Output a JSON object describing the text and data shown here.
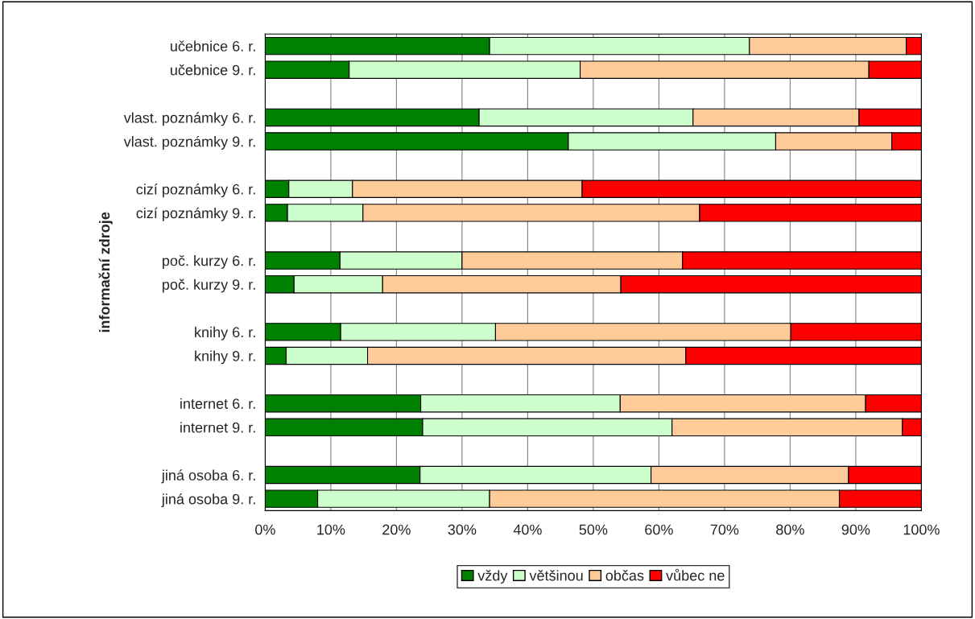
{
  "chart_data": {
    "type": "bar",
    "orientation": "horizontal",
    "stacked": true,
    "ylabel": "informační zdroje",
    "categories": [
      "učebnice 6. r.",
      "učebnice 9. r.",
      null,
      "vlast. poznámky 6. r.",
      "vlast. poznámky 9. r.",
      null,
      "cizí poznámky 6. r.",
      "cizí poznámky 9. r.",
      null,
      "poč. kurzy 6. r.",
      "poč. kurzy 9. r.",
      null,
      "knihy 6. r.",
      "knihy 9. r.",
      null,
      "internet 6. r.",
      "internet 9. r.",
      null,
      "jiná osoba 6. r.",
      "jiná osoba 9. r."
    ],
    "series": [
      {
        "name": "vždy",
        "color": "#008000",
        "values": [
          34.2,
          12.8,
          null,
          32.6,
          46.2,
          null,
          3.6,
          3.4,
          null,
          11.4,
          4.4,
          null,
          11.5,
          3.2,
          null,
          23.7,
          24.0,
          null,
          23.6,
          8.0
        ]
      },
      {
        "name": "většinou",
        "color": "#ccffcc",
        "values": [
          39.6,
          35.2,
          null,
          32.6,
          31.6,
          null,
          9.7,
          11.5,
          null,
          18.6,
          13.5,
          null,
          23.6,
          12.4,
          null,
          30.4,
          38.0,
          null,
          35.2,
          26.2
        ]
      },
      {
        "name": "občas",
        "color": "#ffcc99",
        "values": [
          23.9,
          44.0,
          null,
          25.3,
          17.7,
          null,
          35.0,
          51.3,
          null,
          33.6,
          36.3,
          null,
          45.0,
          48.5,
          null,
          37.4,
          35.1,
          null,
          30.1,
          53.3
        ]
      },
      {
        "name": "vůbec ne",
        "color": "#ff0000",
        "values": [
          2.3,
          8.0,
          null,
          9.5,
          4.5,
          null,
          51.7,
          33.8,
          null,
          36.4,
          45.8,
          null,
          19.9,
          35.9,
          null,
          8.5,
          2.9,
          null,
          11.1,
          12.5
        ]
      }
    ],
    "xlim": [
      0,
      100
    ],
    "xticks": [
      {
        "value": 0,
        "label": "0%"
      },
      {
        "value": 10,
        "label": "10%"
      },
      {
        "value": 20,
        "label": "20%"
      },
      {
        "value": 30,
        "label": "30%"
      },
      {
        "value": 40,
        "label": "40%"
      },
      {
        "value": 50,
        "label": "50%"
      },
      {
        "value": 60,
        "label": "60%"
      },
      {
        "value": 70,
        "label": "70%"
      },
      {
        "value": 80,
        "label": "80%"
      },
      {
        "value": 90,
        "label": "90%"
      },
      {
        "value": 100,
        "label": "100%"
      }
    ],
    "grid": "x",
    "legend": "bottom"
  }
}
